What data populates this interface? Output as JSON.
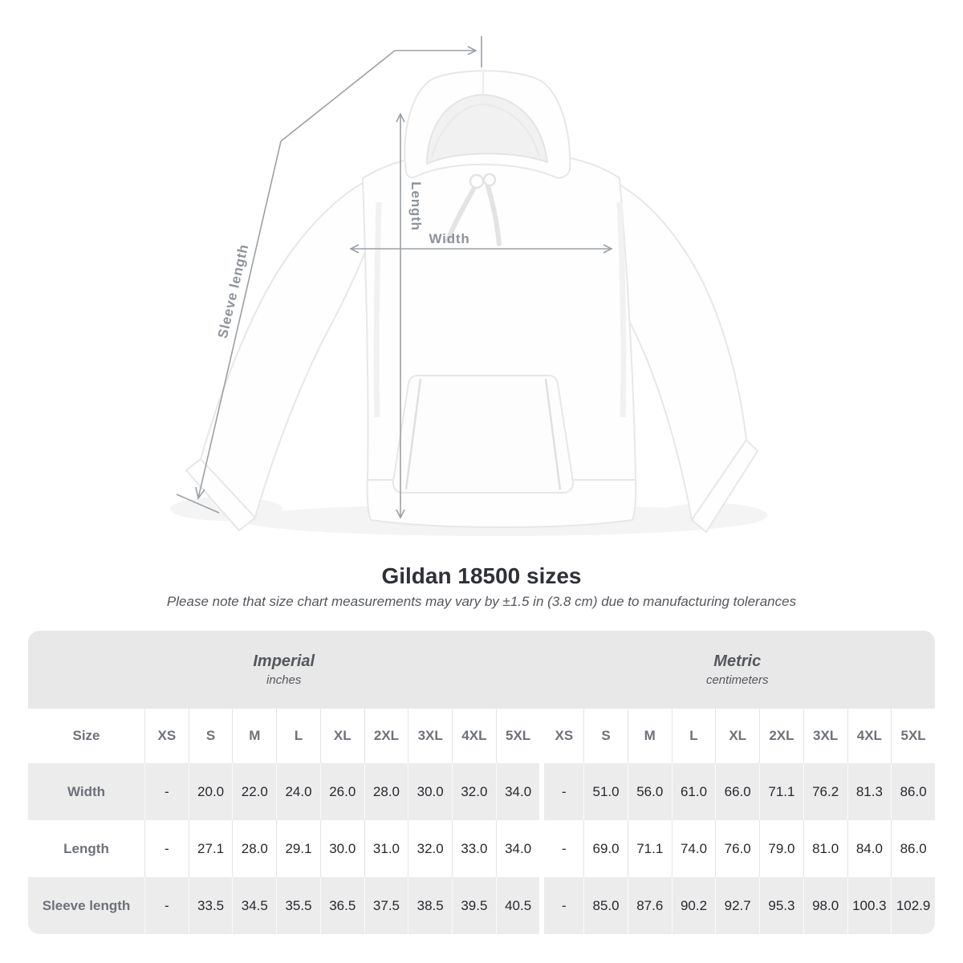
{
  "diagram": {
    "width_label": "Width",
    "length_label": "Length",
    "sleeve_label": "Sleeve length"
  },
  "heading": {
    "title": "Gildan 18500 sizes",
    "subtitle": "Please note that size chart measurements may vary by ±1.5 in (3.8 cm) due to manufacturing tolerances"
  },
  "table": {
    "sections": [
      {
        "name": "Imperial",
        "unit": "inches"
      },
      {
        "name": "Metric",
        "unit": "centimeters"
      }
    ],
    "size_label": "Size",
    "sizes": [
      "XS",
      "S",
      "M",
      "L",
      "XL",
      "2XL",
      "3XL",
      "4XL",
      "5XL"
    ],
    "rows": [
      {
        "label": "Width",
        "imperial": [
          "-",
          "20.0",
          "22.0",
          "24.0",
          "26.0",
          "28.0",
          "30.0",
          "32.0",
          "34.0"
        ],
        "metric": [
          "-",
          "51.0",
          "56.0",
          "61.0",
          "66.0",
          "71.1",
          "76.2",
          "81.3",
          "86.0"
        ]
      },
      {
        "label": "Length",
        "imperial": [
          "-",
          "27.1",
          "28.0",
          "29.1",
          "30.0",
          "31.0",
          "32.0",
          "33.0",
          "34.0"
        ],
        "metric": [
          "-",
          "69.0",
          "71.1",
          "74.0",
          "76.0",
          "79.0",
          "81.0",
          "84.0",
          "86.0"
        ]
      },
      {
        "label": "Sleeve length",
        "imperial": [
          "-",
          "33.5",
          "34.5",
          "35.5",
          "36.5",
          "37.5",
          "38.5",
          "39.5",
          "40.5"
        ],
        "metric": [
          "-",
          "85.0",
          "87.6",
          "90.2",
          "92.7",
          "95.3",
          "98.0",
          "100.3",
          "102.9"
        ]
      }
    ]
  },
  "colors": {
    "measure_line": "#9aa0a6",
    "measure_label": "#8d939a",
    "band_gray": "#e8e8e9",
    "row_gray": "#ececed",
    "header_text": "#6d7278",
    "value_text": "#27292d"
  }
}
